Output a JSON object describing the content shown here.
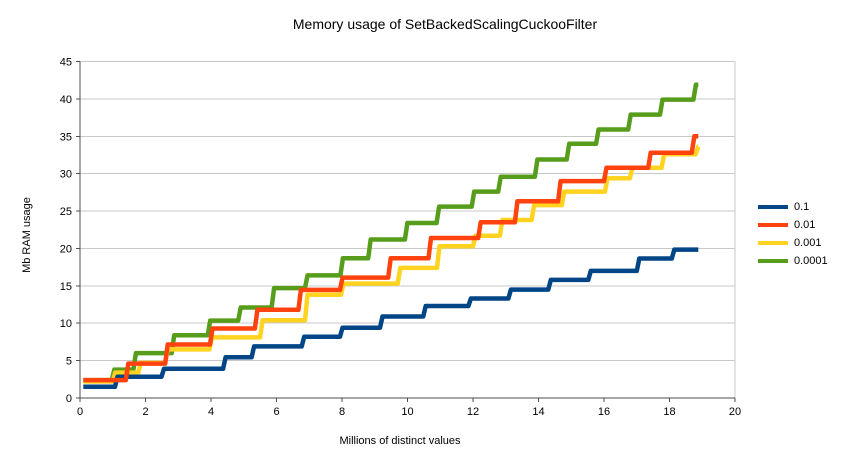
{
  "chart_data": {
    "type": "line",
    "title": "Memory usage of SetBackedScalingCuckooFilter",
    "xlabel": "Millions of distinct values",
    "ylabel": "Mb RAM usage",
    "xlim": [
      0,
      20
    ],
    "ylim": [
      0,
      45
    ],
    "x_ticks": [
      0,
      2,
      4,
      6,
      8,
      10,
      12,
      14,
      16,
      18,
      20
    ],
    "y_ticks": [
      0,
      5,
      10,
      15,
      20,
      25,
      30,
      35,
      40,
      45
    ],
    "grid": true,
    "legend_position": "right",
    "line_style": "step-after",
    "x_end": 18.88,
    "series": [
      {
        "name": "0.1",
        "color": "#004586",
        "points": [
          [
            0.1,
            1.5
          ],
          [
            1.07,
            2.85
          ],
          [
            2.49,
            3.9
          ],
          [
            4.37,
            5.45
          ],
          [
            5.24,
            6.9
          ],
          [
            6.77,
            8.2
          ],
          [
            7.94,
            9.4
          ],
          [
            9.16,
            10.9
          ],
          [
            10.48,
            12.3
          ],
          [
            11.86,
            13.3
          ],
          [
            13.08,
            14.5
          ],
          [
            14.3,
            15.8
          ],
          [
            15.52,
            17.0
          ],
          [
            17.0,
            18.65
          ],
          [
            18.07,
            19.85
          ]
        ]
      },
      {
        "name": "0.01",
        "color": "#FF420E",
        "points": [
          [
            0.1,
            2.4
          ],
          [
            1.4,
            4.6
          ],
          [
            2.6,
            7.15
          ],
          [
            3.97,
            9.3
          ],
          [
            5.34,
            11.8
          ],
          [
            6.67,
            14.45
          ],
          [
            7.94,
            16.1
          ],
          [
            9.41,
            18.7
          ],
          [
            10.64,
            21.4
          ],
          [
            12.16,
            23.5
          ],
          [
            13.28,
            26.3
          ],
          [
            14.6,
            29.0
          ],
          [
            16.0,
            30.8
          ],
          [
            17.35,
            32.8
          ],
          [
            18.68,
            35.0
          ]
        ]
      },
      {
        "name": "0.001",
        "color": "#FFD320",
        "points": [
          [
            0.1,
            2.2
          ],
          [
            1.0,
            3.4
          ],
          [
            1.78,
            4.7
          ],
          [
            2.6,
            6.5
          ],
          [
            3.95,
            8.1
          ],
          [
            5.5,
            10.4
          ],
          [
            6.87,
            13.8
          ],
          [
            7.97,
            15.3
          ],
          [
            9.7,
            17.4
          ],
          [
            10.9,
            20.3
          ],
          [
            12.0,
            21.7
          ],
          [
            12.82,
            23.8
          ],
          [
            13.79,
            25.8
          ],
          [
            14.71,
            27.6
          ],
          [
            16.03,
            29.4
          ],
          [
            16.79,
            30.8
          ],
          [
            17.76,
            32.6
          ],
          [
            18.8,
            33.6
          ]
        ]
      },
      {
        "name": "0.0001",
        "color": "#579D1C",
        "points": [
          [
            0.1,
            2.4
          ],
          [
            0.97,
            3.8
          ],
          [
            1.63,
            6.0
          ],
          [
            2.8,
            8.4
          ],
          [
            3.9,
            10.35
          ],
          [
            4.83,
            12.1
          ],
          [
            5.85,
            14.7
          ],
          [
            6.87,
            16.4
          ],
          [
            7.95,
            18.7
          ],
          [
            8.8,
            21.2
          ],
          [
            9.92,
            23.4
          ],
          [
            10.89,
            25.6
          ],
          [
            11.96,
            27.6
          ],
          [
            12.77,
            29.6
          ],
          [
            13.89,
            31.9
          ],
          [
            14.86,
            34.0
          ],
          [
            15.76,
            35.9
          ],
          [
            16.74,
            37.9
          ],
          [
            17.71,
            39.9
          ],
          [
            18.73,
            41.9
          ]
        ]
      }
    ]
  },
  "colors": {
    "grid": "#c8c8c8",
    "axis": "#4d4d4d",
    "text": "#000000",
    "background": "#ffffff"
  }
}
